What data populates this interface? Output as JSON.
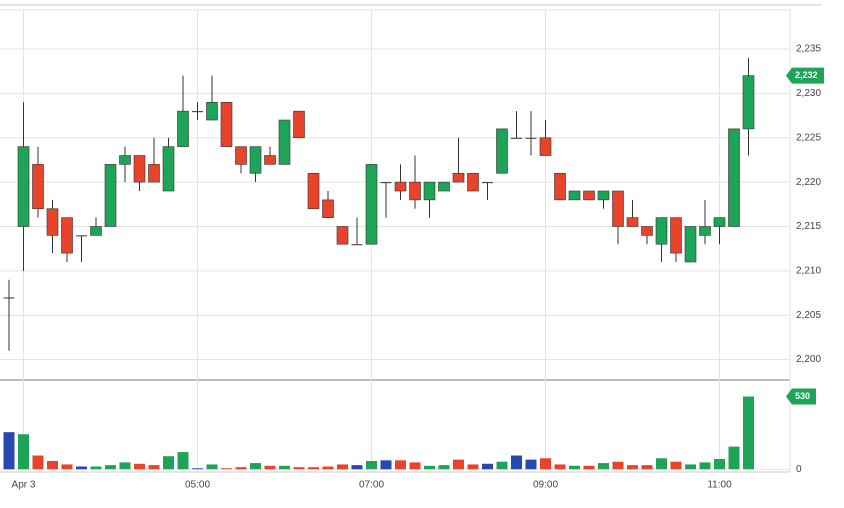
{
  "chart_data": {
    "type": "candlestick",
    "categories": [
      null,
      "Apr 3",
      null,
      null,
      null,
      null,
      null,
      null,
      null,
      null,
      null,
      null,
      null,
      "05:00",
      null,
      null,
      null,
      null,
      null,
      null,
      null,
      null,
      null,
      null,
      null,
      "07:00",
      null,
      null,
      null,
      null,
      null,
      null,
      null,
      null,
      null,
      null,
      null,
      "09:00",
      null,
      null,
      null,
      null,
      null,
      null,
      null,
      null,
      null,
      null,
      null,
      "11:00",
      null,
      null
    ],
    "open": [
      2207,
      2215,
      2222,
      2217,
      2216,
      2214,
      2214,
      2215,
      2222,
      2223,
      2222,
      2219,
      2224,
      2228,
      2227,
      2229,
      2224,
      2221,
      2223,
      2222,
      2228,
      2221,
      2218,
      2215,
      2213,
      2213,
      2220,
      2220,
      2220,
      2218,
      2219,
      2221,
      2221,
      2220,
      2221,
      2225,
      2225,
      2225,
      2221,
      2218,
      2219,
      2218,
      2219,
      2216,
      2215,
      2213,
      2216,
      2211,
      2214,
      2215,
      2215,
      2226
    ],
    "high": [
      2209,
      2229,
      2224,
      2218,
      2216,
      2214,
      2216,
      2222,
      2224,
      2223,
      2225,
      2225,
      2232,
      2229,
      2232,
      2229,
      2224,
      2224,
      2224,
      2227,
      2228,
      2221,
      2219,
      2215,
      2216,
      2222,
      2220,
      2222,
      2223,
      2220,
      2220,
      2225,
      2221,
      2220,
      2226,
      2228,
      2228,
      2227,
      2221,
      2219,
      2219,
      2219,
      2219,
      2218,
      2215,
      2216,
      2216,
      2215,
      2218,
      2216,
      2226,
      2234
    ],
    "low": [
      2201,
      2210,
      2216,
      2212,
      2211,
      2211,
      2214,
      2215,
      2220,
      2219,
      2220,
      2219,
      2224,
      2227,
      2227,
      2224,
      2221,
      2220,
      2222,
      2222,
      2225,
      2217,
      2216,
      2213,
      2213,
      2213,
      2216,
      2218,
      2217,
      2216,
      2219,
      2220,
      2219,
      2218,
      2221,
      2225,
      2223,
      2223,
      2218,
      2218,
      2218,
      2217,
      2213,
      2215,
      2213,
      2211,
      2211,
      2211,
      2213,
      2213,
      2215,
      2223
    ],
    "close": [
      2207,
      2224,
      2217,
      2214,
      2212,
      2214,
      2215,
      2222,
      2223,
      2220,
      2220,
      2224,
      2228,
      2228,
      2229,
      2224,
      2222,
      2224,
      2222,
      2227,
      2225,
      2217,
      2216,
      2213,
      2213,
      2222,
      2220,
      2219,
      2218,
      2220,
      2220,
      2220,
      2219,
      2220,
      2226,
      2225,
      2225,
      2223,
      2218,
      2219,
      2218,
      2219,
      2215,
      2215,
      2214,
      2216,
      2212,
      2215,
      2215,
      2216,
      2226,
      2232
    ],
    "volume": [
      270,
      255,
      100,
      60,
      35,
      20,
      20,
      30,
      50,
      40,
      30,
      95,
      125,
      7,
      35,
      7,
      15,
      45,
      25,
      25,
      15,
      15,
      20,
      35,
      30,
      60,
      65,
      65,
      50,
      25,
      30,
      70,
      35,
      40,
      55,
      100,
      70,
      80,
      35,
      25,
      25,
      45,
      55,
      30,
      30,
      80,
      55,
      35,
      50,
      75,
      165,
      530
    ],
    "up_color": "#1ea456",
    "down_color": "#e8432b",
    "flat_color": "#2748b0",
    "ylim": [
      2197.7,
      2239.4
    ],
    "yticks": [
      {
        "value": 2200,
        "label": "2,200"
      },
      {
        "value": 2205,
        "label": "2,205"
      },
      {
        "value": 2210,
        "label": "2,210"
      },
      {
        "value": 2215,
        "label": "2,215"
      },
      {
        "value": 2220,
        "label": "2,220"
      },
      {
        "value": 2225,
        "label": "2,225"
      },
      {
        "value": 2230,
        "label": "2,230"
      },
      {
        "value": 2235,
        "label": "2,235"
      }
    ],
    "volume_lim": [
      -20,
      650
    ],
    "volume_ticks": [
      0
    ],
    "price_badge": {
      "value": 2232,
      "label": "2,232"
    },
    "grid": true
  }
}
